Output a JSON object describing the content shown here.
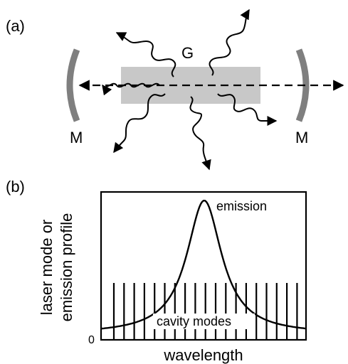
{
  "panel_a": {
    "label": "(a)",
    "gain_label": "G",
    "mirror_left_label": "M",
    "mirror_right_label": "M"
  },
  "panel_b": {
    "label": "(b)",
    "ylabel_line1": "laser mode or",
    "ylabel_line2": "emission profile",
    "xlabel": "wavelength",
    "zero_label": "0",
    "emission_label": "emission",
    "modes_label": "cavity modes"
  },
  "colors": {
    "gain_medium": "#c8c8c8",
    "mirror": "#7f7f7f",
    "ink": "#000000"
  }
}
